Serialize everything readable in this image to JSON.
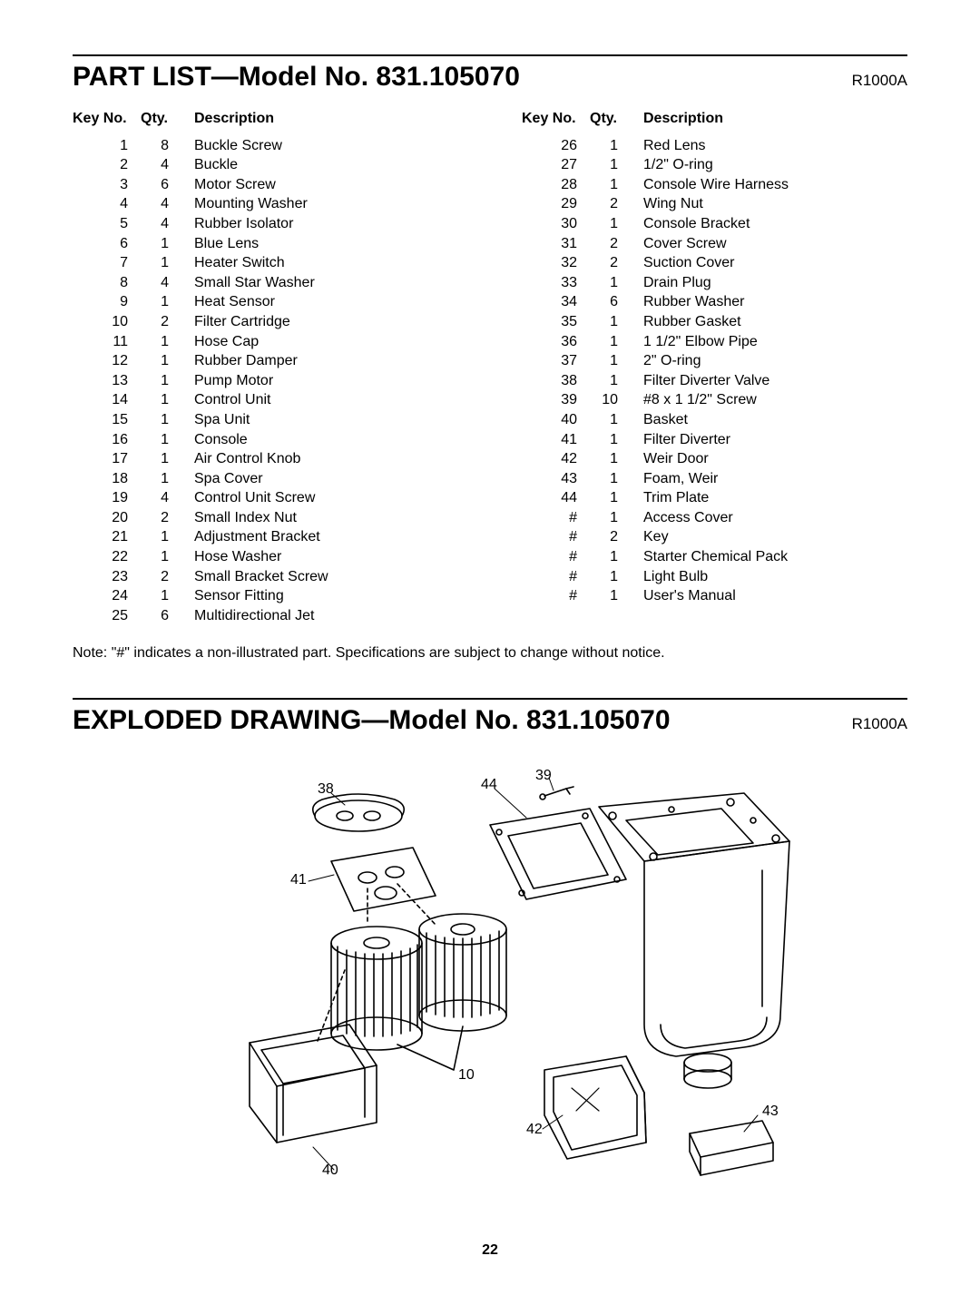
{
  "partList": {
    "title": "PART LIST—Model No. 831.105070",
    "code": "R1000A",
    "headers": {
      "key": "Key No.",
      "qty": "Qty.",
      "desc": "Description"
    },
    "left": [
      {
        "key": "1",
        "qty": "8",
        "desc": "Buckle Screw"
      },
      {
        "key": "2",
        "qty": "4",
        "desc": "Buckle"
      },
      {
        "key": "3",
        "qty": "6",
        "desc": "Motor Screw"
      },
      {
        "key": "4",
        "qty": "4",
        "desc": "Mounting Washer"
      },
      {
        "key": "5",
        "qty": "4",
        "desc": "Rubber Isolator"
      },
      {
        "key": "6",
        "qty": "1",
        "desc": "Blue Lens"
      },
      {
        "key": "7",
        "qty": "1",
        "desc": "Heater Switch"
      },
      {
        "key": "8",
        "qty": "4",
        "desc": "Small Star Washer"
      },
      {
        "key": "9",
        "qty": "1",
        "desc": "Heat Sensor"
      },
      {
        "key": "10",
        "qty": "2",
        "desc": "Filter Cartridge"
      },
      {
        "key": "11",
        "qty": "1",
        "desc": "Hose Cap"
      },
      {
        "key": "12",
        "qty": "1",
        "desc": "Rubber Damper"
      },
      {
        "key": "13",
        "qty": "1",
        "desc": "Pump Motor"
      },
      {
        "key": "14",
        "qty": "1",
        "desc": "Control Unit"
      },
      {
        "key": "15",
        "qty": "1",
        "desc": "Spa Unit"
      },
      {
        "key": "16",
        "qty": "1",
        "desc": "Console"
      },
      {
        "key": "17",
        "qty": "1",
        "desc": "Air Control Knob"
      },
      {
        "key": "18",
        "qty": "1",
        "desc": "Spa Cover"
      },
      {
        "key": "19",
        "qty": "4",
        "desc": "Control Unit Screw"
      },
      {
        "key": "20",
        "qty": "2",
        "desc": "Small Index Nut"
      },
      {
        "key": "21",
        "qty": "1",
        "desc": "Adjustment Bracket"
      },
      {
        "key": "22",
        "qty": "1",
        "desc": "Hose Washer"
      },
      {
        "key": "23",
        "qty": "2",
        "desc": "Small Bracket Screw"
      },
      {
        "key": "24",
        "qty": "1",
        "desc": "Sensor Fitting"
      },
      {
        "key": "25",
        "qty": "6",
        "desc": "Multidirectional Jet"
      }
    ],
    "right": [
      {
        "key": "26",
        "qty": "1",
        "desc": "Red Lens"
      },
      {
        "key": "27",
        "qty": "1",
        "desc": "1/2\" O-ring"
      },
      {
        "key": "28",
        "qty": "1",
        "desc": "Console Wire Harness"
      },
      {
        "key": "29",
        "qty": "2",
        "desc": "Wing Nut"
      },
      {
        "key": "30",
        "qty": "1",
        "desc": "Console Bracket"
      },
      {
        "key": "31",
        "qty": "2",
        "desc": "Cover Screw"
      },
      {
        "key": "32",
        "qty": "2",
        "desc": "Suction Cover"
      },
      {
        "key": "33",
        "qty": "1",
        "desc": "Drain Plug"
      },
      {
        "key": "34",
        "qty": "6",
        "desc": "Rubber Washer"
      },
      {
        "key": "35",
        "qty": "1",
        "desc": "Rubber Gasket"
      },
      {
        "key": "36",
        "qty": "1",
        "desc": "1 1/2\" Elbow Pipe"
      },
      {
        "key": "37",
        "qty": "1",
        "desc": "2\" O-ring"
      },
      {
        "key": "38",
        "qty": "1",
        "desc": "Filter Diverter Valve"
      },
      {
        "key": "39",
        "qty": "10",
        "desc": "#8 x 1 1/2\" Screw"
      },
      {
        "key": "40",
        "qty": "1",
        "desc": "Basket"
      },
      {
        "key": "41",
        "qty": "1",
        "desc": "Filter Diverter"
      },
      {
        "key": "42",
        "qty": "1",
        "desc": "Weir Door"
      },
      {
        "key": "43",
        "qty": "1",
        "desc": "Foam, Weir"
      },
      {
        "key": "44",
        "qty": "1",
        "desc": "Trim Plate"
      },
      {
        "key": "#",
        "qty": "1",
        "desc": "Access Cover"
      },
      {
        "key": "#",
        "qty": "2",
        "desc": "Key"
      },
      {
        "key": "#",
        "qty": "1",
        "desc": "Starter Chemical Pack"
      },
      {
        "key": "#",
        "qty": "1",
        "desc": "Light Bulb"
      },
      {
        "key": "#",
        "qty": "1",
        "desc": "User's Manual"
      }
    ],
    "note": "Note: \"#\" indicates a non-illustrated part. Specifications are subject to change without notice."
  },
  "drawing": {
    "title": "EXPLODED DRAWING—Model No. 831.105070",
    "code": "R1000A",
    "labels": {
      "l38": "38",
      "l44": "44",
      "l39": "39",
      "l41": "41",
      "l10": "10",
      "l40": "40",
      "l42": "42",
      "l43": "43"
    }
  },
  "pageNumber": "22",
  "style": {
    "font": "Arial",
    "titleSize": 30,
    "bodySize": 16,
    "lineColor": "#000000",
    "bg": "#ffffff"
  }
}
